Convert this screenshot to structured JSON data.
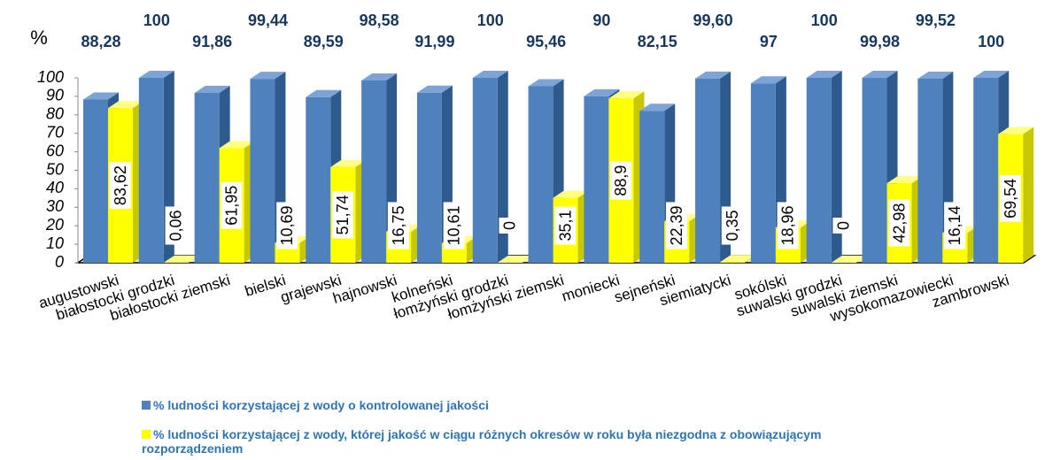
{
  "chart_data": {
    "type": "bar3d",
    "y_label": "%",
    "categories": [
      "augustowski",
      "białostocki grodzki",
      "białostocki ziemski",
      "bielski",
      "grajewski",
      "hajnowski",
      "kolneński",
      "łomżyński grodzki",
      "łomżyński ziemski",
      "moniecki",
      "sejneński",
      "siemiatycki",
      "sokólski",
      "suwalski grodzki",
      "suwalski ziemski",
      "wysokomazowiecki",
      "zambrowski"
    ],
    "series": [
      {
        "name": "% ludności korzystającej z wody o kontrolowanej jakości",
        "color": "#4f81bd",
        "values": [
          88.28,
          100,
          91.86,
          99.44,
          89.59,
          98.58,
          91.99,
          100,
          95.46,
          90,
          82.15,
          99.6,
          97,
          100,
          99.98,
          99.52,
          100
        ],
        "value_labels": [
          "88,28",
          "100",
          "91,86",
          "99,44",
          "89,59",
          "98,58",
          "91,99",
          "100",
          "95,46",
          "90",
          "82,15",
          "99,60",
          "97",
          "100",
          "99,98",
          "99,52",
          "100"
        ]
      },
      {
        "name": "% ludności korzystającej z wody, której jakość w ciągu różnych okresów w roku była niezgodna z obowiązującym rozporządzeniem",
        "color": "#ffff00",
        "values": [
          83.62,
          0.06,
          61.95,
          10.69,
          51.74,
          16.75,
          10.61,
          0,
          35.1,
          88.9,
          22.39,
          0.35,
          18.96,
          0,
          42.98,
          16.14,
          69.54
        ],
        "value_labels": [
          "83,62",
          "0,06",
          "61,95",
          "10,69",
          "51,74",
          "16,75",
          "10,61",
          "0",
          "35,1",
          "88,9",
          "22,39",
          "0,35",
          "18,96",
          "0",
          "42,98",
          "16,14",
          "69,54"
        ]
      }
    ],
    "ylim": [
      0,
      100
    ],
    "yticks": [
      0,
      10,
      20,
      30,
      40,
      50,
      60,
      70,
      80,
      90,
      100
    ],
    "legend": "bottom"
  }
}
